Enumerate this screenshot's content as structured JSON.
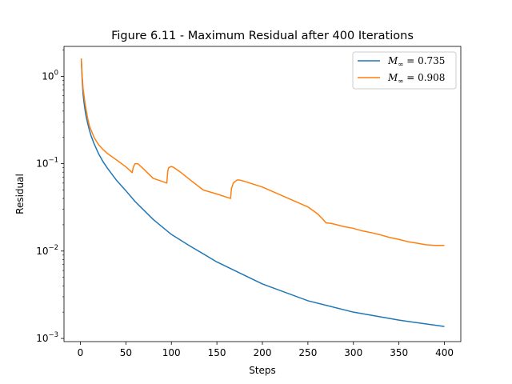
{
  "chart_data": {
    "type": "line",
    "title": "Figure 6.11 - Maximum Residual after 400 Iterations",
    "xlabel": "Steps",
    "ylabel": "Residual",
    "xlim": [
      -18,
      418
    ],
    "ylim": [
      0.00092,
      2.2
    ],
    "yscale": "log",
    "xticks": [
      0,
      50,
      100,
      150,
      200,
      250,
      300,
      350,
      400
    ],
    "yticks": [
      {
        "value": 0.001,
        "base": "10",
        "exp": "−3"
      },
      {
        "value": 0.01,
        "base": "10",
        "exp": "−2"
      },
      {
        "value": 0.1,
        "base": "10",
        "exp": "−1"
      },
      {
        "value": 1,
        "base": "10",
        "exp": "0"
      }
    ],
    "grid": false,
    "legend_position": "top-right",
    "series": [
      {
        "name": "M∞ = 0.735",
        "label_main": "M",
        "label_sub": "∞",
        "label_rest": " = 0.735",
        "color": "#1f77b4",
        "x": [
          1,
          2,
          3,
          4,
          5,
          6,
          8,
          10,
          12,
          15,
          20,
          25,
          30,
          40,
          50,
          60,
          80,
          100,
          120,
          150,
          200,
          250,
          300,
          350,
          400
        ],
        "y": [
          1.55,
          0.9,
          0.62,
          0.5,
          0.42,
          0.36,
          0.29,
          0.24,
          0.205,
          0.17,
          0.13,
          0.105,
          0.088,
          0.064,
          0.049,
          0.037,
          0.023,
          0.0155,
          0.0115,
          0.0075,
          0.0042,
          0.0027,
          0.002,
          0.00162,
          0.00137
        ]
      },
      {
        "name": "M∞ = 0.908",
        "label_main": "M",
        "label_sub": "∞",
        "label_rest": " = 0.908",
        "color": "#ff7f0e",
        "x": [
          1,
          2,
          3,
          5,
          8,
          10,
          15,
          20,
          25,
          30,
          40,
          50,
          57,
          58,
          60,
          63,
          67,
          72,
          80,
          95,
          96,
          97,
          100,
          103,
          110,
          120,
          135,
          150,
          165,
          166,
          168,
          172,
          175,
          180,
          200,
          250,
          260,
          265,
          270,
          275,
          280,
          290,
          300,
          310,
          320,
          330,
          340,
          350,
          360,
          370,
          380,
          390,
          400
        ],
        "y": [
          1.6,
          1.0,
          0.72,
          0.5,
          0.33,
          0.27,
          0.2,
          0.165,
          0.145,
          0.13,
          0.11,
          0.092,
          0.079,
          0.09,
          0.1,
          0.1,
          0.092,
          0.082,
          0.068,
          0.06,
          0.082,
          0.09,
          0.093,
          0.09,
          0.08,
          0.066,
          0.05,
          0.045,
          0.04,
          0.052,
          0.06,
          0.065,
          0.065,
          0.063,
          0.054,
          0.032,
          0.027,
          0.024,
          0.021,
          0.0208,
          0.0202,
          0.019,
          0.0182,
          0.017,
          0.0162,
          0.0153,
          0.0143,
          0.0136,
          0.0128,
          0.0123,
          0.0118,
          0.0116,
          0.0116
        ]
      }
    ]
  }
}
